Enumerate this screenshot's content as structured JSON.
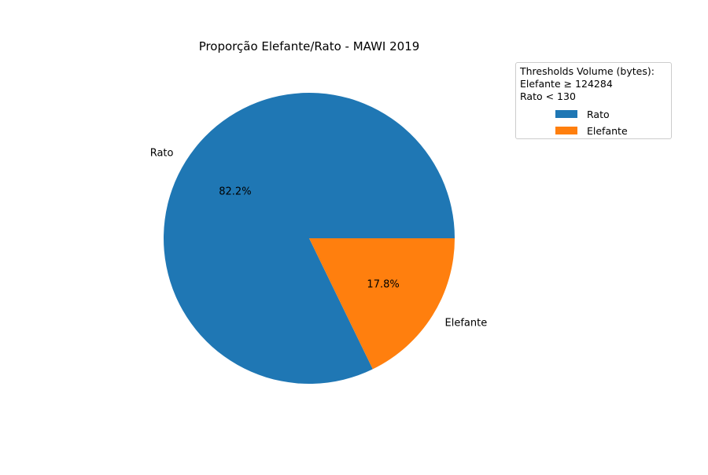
{
  "chart_data": {
    "type": "pie",
    "title": "Proporção Elefante/Rato - MAWI 2019",
    "slices": [
      {
        "label": "Rato",
        "value": 82.2,
        "pct_label": "82.2%",
        "color": "#1f77b4"
      },
      {
        "label": "Elefante",
        "value": 17.8,
        "pct_label": "17.8%",
        "color": "#ff7f0e"
      }
    ],
    "legend": {
      "title_lines": [
        "Thresholds Volume (bytes):",
        "Elefante ≥ 124284",
        "Rato < 130"
      ],
      "entries": [
        "Rato",
        "Elefante"
      ],
      "placement": "upper-right, outside plot"
    }
  }
}
